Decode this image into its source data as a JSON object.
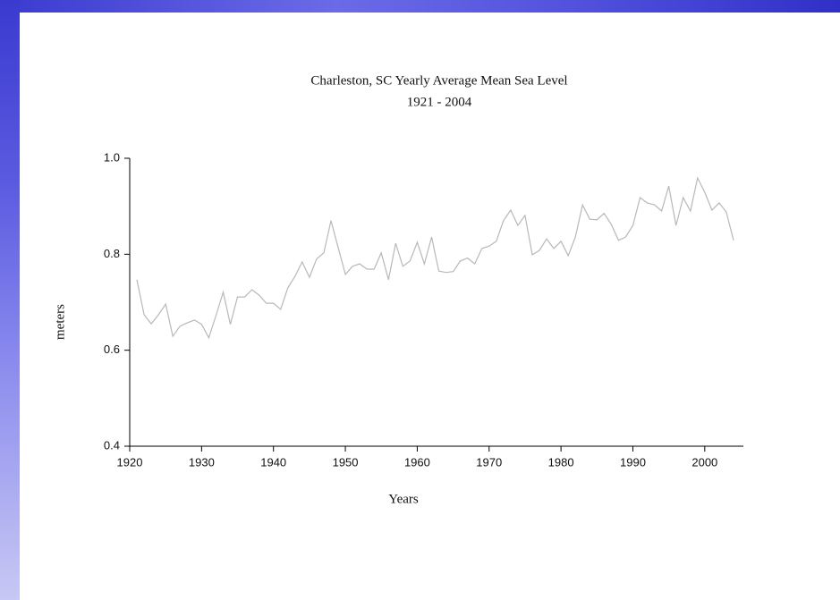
{
  "chart_data": {
    "type": "line",
    "title": "Charleston, SC Yearly Average Mean Sea Level",
    "subtitle": "1921 - 2004",
    "x_label": "Years",
    "y_label": "meters",
    "color": "#b8b8b8",
    "x": [
      1921,
      1922,
      1923,
      1924,
      1925,
      1926,
      1927,
      1928,
      1929,
      1930,
      1931,
      1932,
      1933,
      1934,
      1935,
      1936,
      1937,
      1938,
      1939,
      1940,
      1941,
      1942,
      1943,
      1944,
      1945,
      1946,
      1947,
      1948,
      1949,
      1950,
      1951,
      1952,
      1953,
      1954,
      1955,
      1956,
      1957,
      1958,
      1959,
      1960,
      1961,
      1962,
      1963,
      1964,
      1965,
      1966,
      1967,
      1968,
      1969,
      1970,
      1971,
      1972,
      1973,
      1974,
      1975,
      1976,
      1977,
      1978,
      1979,
      1980,
      1981,
      1982,
      1983,
      1984,
      1985,
      1986,
      1987,
      1988,
      1989,
      1990,
      1991,
      1992,
      1993,
      1994,
      1995,
      1996,
      1997,
      1998,
      1999,
      2000,
      2001,
      2002,
      2003,
      2004
    ],
    "values": [
      0.747,
      0.674,
      0.655,
      0.674,
      0.696,
      0.629,
      0.65,
      0.657,
      0.663,
      0.654,
      0.626,
      0.672,
      0.721,
      0.654,
      0.711,
      0.711,
      0.726,
      0.715,
      0.698,
      0.698,
      0.685,
      0.73,
      0.754,
      0.784,
      0.752,
      0.79,
      0.803,
      0.87,
      0.814,
      0.758,
      0.775,
      0.78,
      0.769,
      0.769,
      0.803,
      0.747,
      0.823,
      0.775,
      0.786,
      0.825,
      0.78,
      0.836,
      0.765,
      0.762,
      0.764,
      0.786,
      0.792,
      0.78,
      0.812,
      0.817,
      0.827,
      0.87,
      0.892,
      0.86,
      0.881,
      0.799,
      0.808,
      0.832,
      0.812,
      0.827,
      0.797,
      0.836,
      0.903,
      0.873,
      0.872,
      0.885,
      0.862,
      0.829,
      0.836,
      0.86,
      0.918,
      0.907,
      0.903,
      0.89,
      0.942,
      0.86,
      0.918,
      0.89,
      0.959,
      0.929,
      0.892,
      0.907,
      0.888,
      0.829
    ],
    "xlim": [
      1920,
      2005
    ],
    "xticks": [
      1920,
      1930,
      1940,
      1950,
      1960,
      1970,
      1980,
      1990,
      2000
    ],
    "ylim": [
      0.4,
      1.0
    ],
    "yticks": [
      0.4,
      0.6,
      0.8,
      {
        "value": 1,
        "label": "1.0"
      }
    ]
  }
}
